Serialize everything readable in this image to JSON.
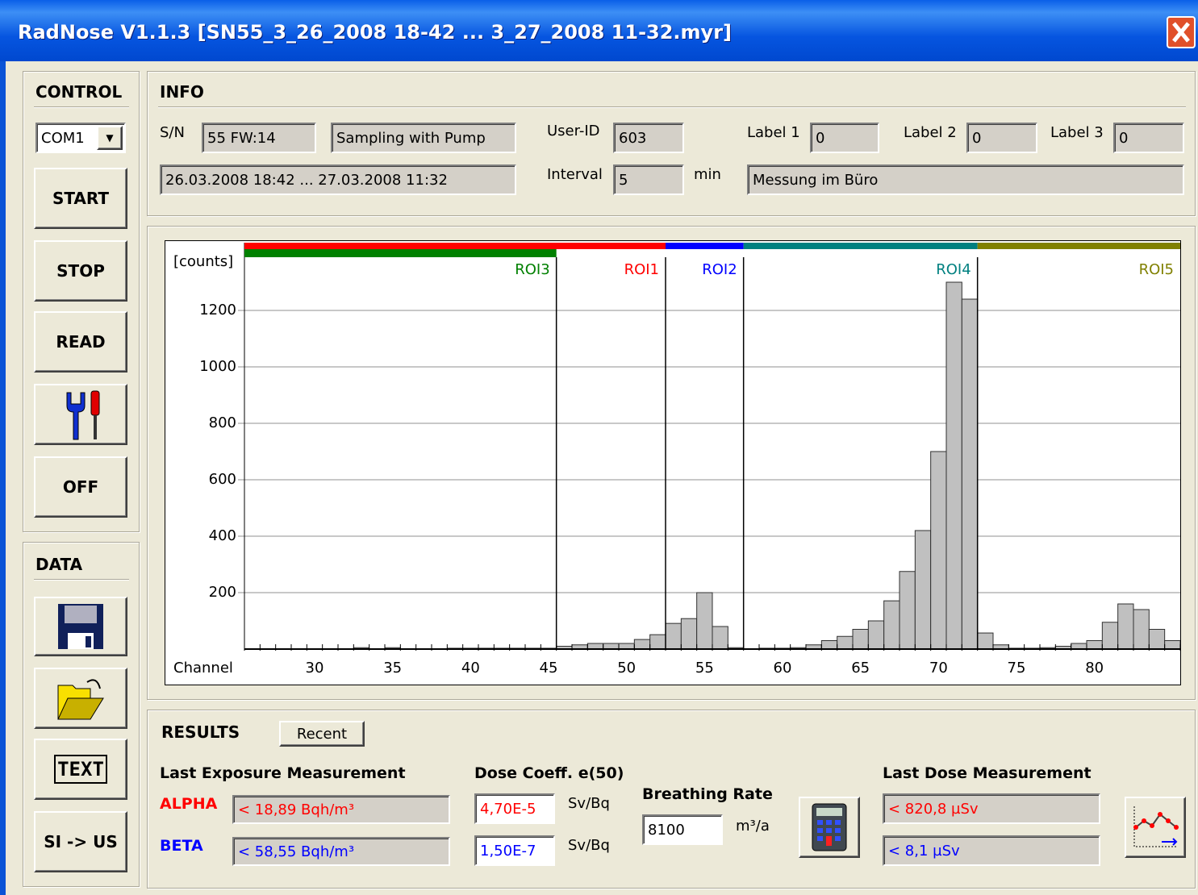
{
  "window": {
    "title": "RadNose V1.1.3 [SN55_3_26_2008 18-42 ... 3_27_2008 11-32.myr]"
  },
  "control": {
    "heading": "CONTROL",
    "port": "COM1",
    "start": "START",
    "stop": "STOP",
    "read": "READ",
    "off": "OFF"
  },
  "data_panel": {
    "heading": "DATA",
    "text_button": "TEXT",
    "unit_button": "SI -> US"
  },
  "info": {
    "heading": "INFO",
    "sn_label": "S/N",
    "sn": "55 FW:14",
    "mode": "Sampling with Pump",
    "period": "26.03.2008 18:42 ... 27.03.2008 11:32",
    "user_label": "User-ID",
    "user": "603",
    "interval_label": "Interval",
    "interval": "5",
    "interval_unit": "min",
    "label1_label": "Label 1",
    "label1": "0",
    "label2_label": "Label 2",
    "label2": "0",
    "label3_label": "Label 3",
    "label3": "0",
    "comment": "Messung im Büro"
  },
  "chart_data": {
    "type": "histogram",
    "y_label": "[counts]",
    "x_label": "Channel",
    "bins": [
      25.5,
      26.5,
      27.5,
      28.5,
      29.5,
      30.5,
      31.5,
      32.5,
      33.5,
      34.5,
      35.5,
      36.5,
      37.5,
      38.5,
      39.5,
      40.5,
      41.5,
      42.5,
      43.5,
      44.5,
      45.5,
      46.5,
      47.5,
      48.5,
      49.5,
      50.5,
      51.5,
      52.5,
      53.5,
      54.5,
      55.5,
      56.5,
      57.5,
      58.5,
      59.5,
      60.5,
      61.5,
      62.5,
      63.5,
      64.5,
      65.5,
      66.5,
      67.5,
      68.5,
      69.5,
      70.5,
      71.5,
      72.5,
      73.5,
      74.5,
      75.5,
      76.5,
      77.5,
      78.5,
      79.5,
      80.5,
      81.5,
      82.5,
      83.5,
      84.5,
      85.5
    ],
    "values": [
      0,
      0,
      0,
      0,
      0,
      0,
      0,
      5,
      0,
      5,
      0,
      0,
      0,
      3,
      3,
      3,
      3,
      3,
      3,
      3,
      10,
      15,
      20,
      20,
      20,
      34,
      51,
      91,
      108,
      200,
      80,
      5,
      0,
      3,
      3,
      5,
      15,
      30,
      45,
      70,
      100,
      171,
      275,
      420,
      700,
      1300,
      1240,
      57,
      15,
      3,
      3,
      5,
      10,
      20,
      30,
      95,
      160,
      140,
      70,
      30
    ],
    "color": "#c0c0c0",
    "xlim": [
      25.5,
      85.5
    ],
    "ylim": [
      0,
      1440
    ],
    "xticks": [
      30,
      35,
      40,
      45,
      50,
      55,
      60,
      65,
      70,
      75,
      80
    ],
    "yticks": [
      200,
      400,
      600,
      800,
      1000,
      1200
    ],
    "grid": true,
    "rois": [
      {
        "name": "ROI1",
        "color": "#ff0000",
        "start": 25.5,
        "end": 52.5
      },
      {
        "name": "ROI2",
        "color": "#0000ff",
        "start": 52.5,
        "end": 57.5
      },
      {
        "name": "ROI3",
        "color": "#008000",
        "start": 25.5,
        "end": 45.5
      },
      {
        "name": "ROI4",
        "color": "#008080",
        "start": 57.5,
        "end": 72.5
      },
      {
        "name": "ROI5",
        "color": "#808000",
        "start": 72.5,
        "end": 85.5
      }
    ]
  },
  "results": {
    "heading": "RESULTS",
    "recent": "Recent",
    "exposure_heading": "Last Exposure Measurement",
    "alpha_label": "ALPHA",
    "alpha": "< 18,89 Bqh/m³",
    "beta_label": "BETA",
    "beta": "< 58,55 Bqh/m³",
    "coeff_heading": "Dose Coeff. e(50)",
    "coeff_alpha": "4,70E-5",
    "coeff_beta": "1,50E-7",
    "coeff_unit_alpha": "Sv/Bq",
    "coeff_unit_beta": "Sv/Bq",
    "breathing_heading": "Breathing Rate",
    "breathing": "8100",
    "breathing_unit": "m³/a",
    "dose_heading": "Last Dose Measurement",
    "dose_alpha": "< 820,8 µSv",
    "dose_beta": "< 8,1 µSv"
  }
}
